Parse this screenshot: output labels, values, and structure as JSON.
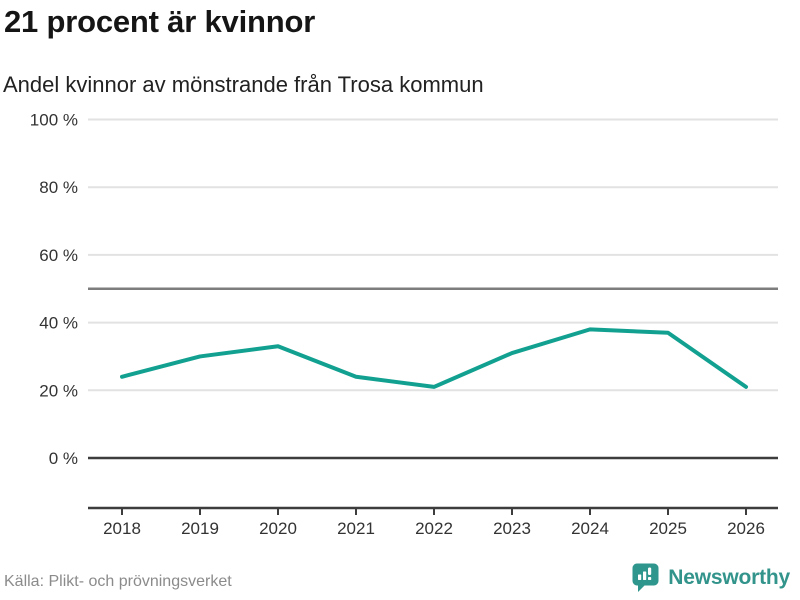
{
  "header": {
    "title": "21 procent är kvinnor",
    "subtitle": "Andel kvinnor av mönstrande från Trosa kommun"
  },
  "chart_data": {
    "type": "line",
    "title": "21 procent är kvinnor",
    "subtitle": "Andel kvinnor av mönstrande från Trosa kommun",
    "x": [
      "2018",
      "2019",
      "2020",
      "2021",
      "2022",
      "2023",
      "2024",
      "2025",
      "2026"
    ],
    "series": [
      {
        "name": "Andel kvinnor av mönstrande",
        "values": [
          24,
          30,
          33,
          24,
          21,
          31,
          38,
          37,
          21
        ]
      }
    ],
    "xlabel": "",
    "ylabel": "",
    "ylim": [
      0,
      100
    ],
    "yticks": [
      0,
      20,
      40,
      60,
      80,
      100
    ],
    "ytick_suffix": " %",
    "reference_line": 50,
    "grid": true,
    "legend_position": "none",
    "line_color": "#12a191",
    "gridline_color": "#e2e2e2",
    "reference_line_color": "#7d7d7d",
    "axis_color": "#3d3d3d",
    "tick_label_color": "#333333"
  },
  "footer": {
    "source": "Källa: Plikt- och prövningsverket",
    "brand": {
      "name": "Newsworthy",
      "color": "#33948c",
      "icon_color": "#2e968d"
    }
  }
}
